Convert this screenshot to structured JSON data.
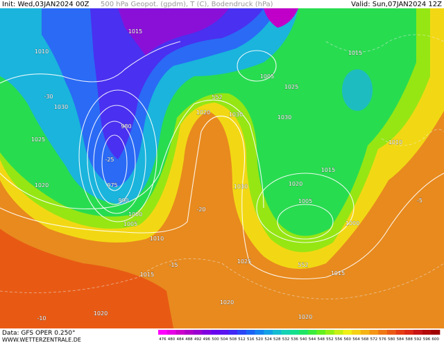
{
  "header": {
    "init": "Init: Wed,03JAN2024 00Z",
    "title": "500 hPa Geopot. (gpdm), T (C), Bodendruck (hPa)",
    "valid": "Valid: Sun,07JAN2024 12Z"
  },
  "footer": {
    "source": "Data: GFS OPER 0.250°",
    "site": "WWW.WETTERZENTRALE.DE"
  },
  "colorbar": {
    "labels": [
      476,
      480,
      484,
      488,
      492,
      496,
      500,
      504,
      508,
      512,
      516,
      520,
      524,
      528,
      532,
      536,
      540,
      544,
      548,
      552,
      556,
      560,
      564,
      568,
      572,
      576,
      580,
      584,
      588,
      592,
      596,
      600
    ],
    "colors": [
      "#ff00ff",
      "#e600e6",
      "#cc00cc",
      "#b000c8",
      "#9a00d0",
      "#8000e0",
      "#6600ee",
      "#5a14f0",
      "#4028f5",
      "#2a46f5",
      "#1a64f5",
      "#1482f0",
      "#14a0e6",
      "#14bcd2",
      "#14d2b4",
      "#14e08c",
      "#1ee664",
      "#3cec3c",
      "#64f01e",
      "#96f014",
      "#c8f014",
      "#f0f014",
      "#f5d214",
      "#f5b414",
      "#f59614",
      "#f07814",
      "#eb5a14",
      "#e63c14",
      "#dc2814",
      "#c81414",
      "#b40a0a",
      "#a00000"
    ]
  },
  "map_labels": [
    "1015",
    "1010",
    "1030",
    "1025",
    "1020",
    "980",
    "975",
    "990",
    "1000",
    "1005",
    "1010",
    "1015",
    "1020",
    "1025",
    "1030",
    "1020",
    "1030",
    "1005",
    "1025",
    "1030",
    "1015",
    "1020",
    "1005",
    "1000",
    "1010",
    "1015",
    "552",
    "552",
    "-25",
    "-20",
    "-15",
    "-30",
    "-5",
    "-10",
    "1020",
    "1020",
    "1015"
  ]
}
